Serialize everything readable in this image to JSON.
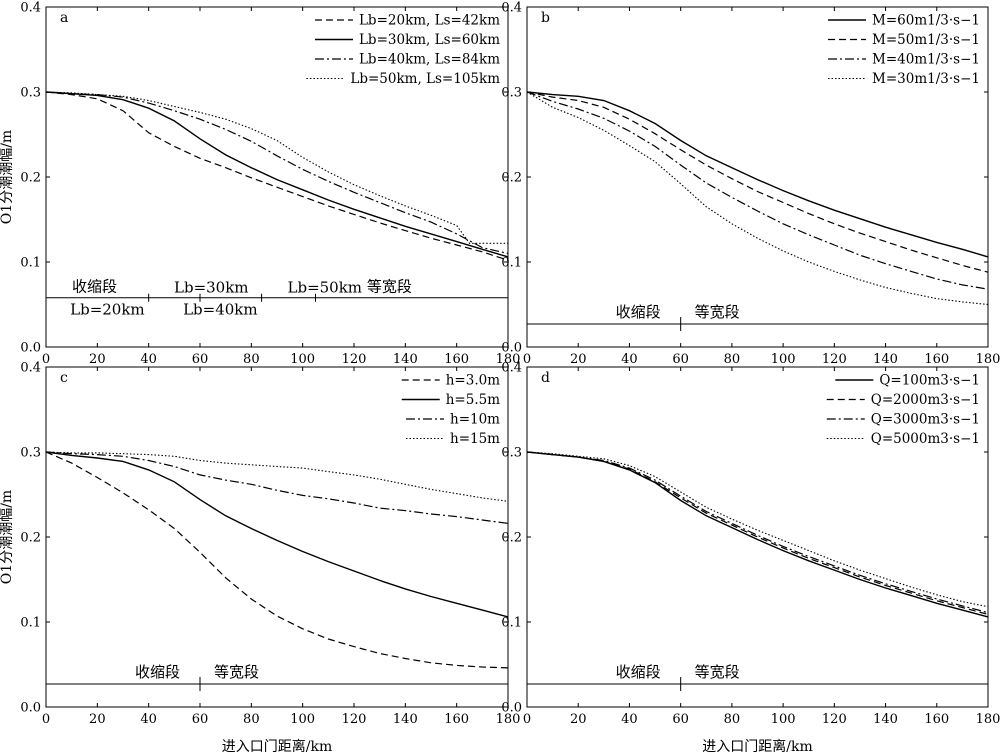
{
  "xlabel": "进入口门距离/km",
  "ylabel": "O1分潮潮幅/m",
  "x_ticks": [
    0,
    20,
    40,
    60,
    80,
    100,
    120,
    140,
    160,
    180
  ],
  "y_ticks": [
    0.0,
    0.1,
    0.2,
    0.3,
    0.4
  ],
  "chart_data": [
    {
      "panel": "a",
      "type": "line",
      "xlabel": "",
      "ylabel": "O1分潮潮幅/m",
      "xlim": [
        0,
        180
      ],
      "ylim": [
        0,
        0.4
      ],
      "legend_position": "top-right",
      "series": [
        {
          "name": "Lb=20km, Ls=42km",
          "style": "dashed",
          "x": [
            0,
            10,
            20,
            30,
            40,
            50,
            60,
            70,
            80,
            90,
            100,
            110,
            120,
            130,
            140,
            150,
            160,
            170,
            180
          ],
          "y": [
            0.3,
            0.297,
            0.292,
            0.278,
            0.252,
            0.236,
            0.222,
            0.211,
            0.199,
            0.188,
            0.177,
            0.166,
            0.156,
            0.146,
            0.137,
            0.128,
            0.12,
            0.112,
            0.102
          ]
        },
        {
          "name": "Lb=30km, Ls=60km",
          "style": "solid",
          "x": [
            0,
            10,
            20,
            30,
            40,
            50,
            60,
            70,
            80,
            90,
            100,
            110,
            120,
            130,
            140,
            150,
            160,
            170,
            180
          ],
          "y": [
            0.3,
            0.298,
            0.296,
            0.291,
            0.281,
            0.266,
            0.245,
            0.226,
            0.211,
            0.197,
            0.185,
            0.173,
            0.162,
            0.152,
            0.142,
            0.133,
            0.124,
            0.115,
            0.106
          ]
        },
        {
          "name": "Lb=40km, Ls=84km",
          "style": "dashdot",
          "x": [
            0,
            10,
            20,
            30,
            40,
            50,
            60,
            70,
            80,
            90,
            100,
            110,
            120,
            130,
            140,
            150,
            160,
            170,
            180
          ],
          "y": [
            0.3,
            0.298,
            0.297,
            0.294,
            0.287,
            0.278,
            0.268,
            0.256,
            0.242,
            0.225,
            0.209,
            0.195,
            0.182,
            0.17,
            0.158,
            0.147,
            0.133,
            0.117,
            0.11
          ]
        },
        {
          "name": "Lb=50km, Ls=105km",
          "style": "dotted",
          "x": [
            0,
            10,
            20,
            30,
            40,
            50,
            60,
            70,
            80,
            90,
            100,
            110,
            120,
            130,
            140,
            150,
            160,
            165,
            170,
            180
          ],
          "y": [
            0.3,
            0.299,
            0.297,
            0.295,
            0.29,
            0.283,
            0.276,
            0.268,
            0.257,
            0.243,
            0.223,
            0.206,
            0.191,
            0.178,
            0.166,
            0.155,
            0.143,
            0.122,
            0.122,
            0.122
          ]
        }
      ],
      "region_labels": {
        "converging": "收缩段",
        "uniform": "等宽段"
      },
      "annotations": [
        {
          "text": "Lb=20km",
          "x": 40
        },
        {
          "text": "Lb=30km",
          "x": 60
        },
        {
          "text": "Lb=40km",
          "x": 84
        },
        {
          "text": "Lb=50km",
          "x": 105
        }
      ]
    },
    {
      "panel": "b",
      "type": "line",
      "xlabel": "",
      "ylabel": "",
      "xlim": [
        0,
        180
      ],
      "ylim": [
        0,
        0.4
      ],
      "legend_position": "top-right",
      "series": [
        {
          "name": "M=60m1/3·s−1",
          "style": "solid",
          "x": [
            0,
            10,
            20,
            30,
            40,
            50,
            60,
            70,
            80,
            90,
            100,
            110,
            120,
            130,
            140,
            150,
            160,
            170,
            180
          ],
          "y": [
            0.3,
            0.297,
            0.295,
            0.29,
            0.278,
            0.263,
            0.243,
            0.225,
            0.211,
            0.197,
            0.184,
            0.172,
            0.161,
            0.151,
            0.141,
            0.132,
            0.123,
            0.115,
            0.106
          ]
        },
        {
          "name": "M=50m1/3·s−1",
          "style": "dashed",
          "x": [
            0,
            10,
            20,
            30,
            40,
            50,
            60,
            70,
            80,
            90,
            100,
            110,
            120,
            130,
            140,
            150,
            160,
            170,
            180
          ],
          "y": [
            0.3,
            0.294,
            0.29,
            0.282,
            0.268,
            0.251,
            0.232,
            0.214,
            0.198,
            0.183,
            0.17,
            0.157,
            0.145,
            0.134,
            0.124,
            0.114,
            0.105,
            0.096,
            0.088
          ]
        },
        {
          "name": "M=40m1/3·s−1",
          "style": "dashdot",
          "x": [
            0,
            10,
            20,
            30,
            40,
            50,
            60,
            70,
            80,
            90,
            100,
            110,
            120,
            130,
            140,
            150,
            160,
            170,
            180
          ],
          "y": [
            0.3,
            0.289,
            0.28,
            0.269,
            0.254,
            0.236,
            0.214,
            0.193,
            0.176,
            0.16,
            0.145,
            0.132,
            0.12,
            0.108,
            0.098,
            0.089,
            0.08,
            0.073,
            0.068
          ]
        },
        {
          "name": "M=30m1/3·s−1",
          "style": "dotted",
          "x": [
            0,
            10,
            20,
            30,
            40,
            50,
            60,
            70,
            80,
            90,
            100,
            110,
            120,
            130,
            140,
            150,
            160,
            170,
            180
          ],
          "y": [
            0.3,
            0.282,
            0.27,
            0.255,
            0.237,
            0.218,
            0.192,
            0.165,
            0.145,
            0.128,
            0.113,
            0.1,
            0.089,
            0.079,
            0.07,
            0.063,
            0.057,
            0.053,
            0.05
          ]
        }
      ],
      "region_labels": {
        "converging": "收缩段",
        "uniform": "等宽段"
      }
    },
    {
      "panel": "c",
      "type": "line",
      "xlabel": "进入口门距离/km",
      "ylabel": "O1分潮潮幅/m",
      "xlim": [
        0,
        180
      ],
      "ylim": [
        0,
        0.4
      ],
      "legend_position": "top-right",
      "series": [
        {
          "name": "h=3.0m",
          "style": "dashed",
          "x": [
            0,
            10,
            20,
            30,
            40,
            50,
            60,
            70,
            80,
            90,
            100,
            110,
            120,
            130,
            140,
            150,
            160,
            170,
            180
          ],
          "y": [
            0.3,
            0.287,
            0.27,
            0.252,
            0.232,
            0.21,
            0.182,
            0.152,
            0.127,
            0.107,
            0.092,
            0.08,
            0.071,
            0.063,
            0.057,
            0.052,
            0.049,
            0.047,
            0.046
          ]
        },
        {
          "name": "h=5.5m",
          "style": "solid",
          "x": [
            0,
            10,
            20,
            30,
            40,
            50,
            60,
            70,
            80,
            90,
            100,
            110,
            120,
            130,
            140,
            150,
            160,
            170,
            180
          ],
          "y": [
            0.3,
            0.296,
            0.293,
            0.289,
            0.279,
            0.265,
            0.244,
            0.225,
            0.21,
            0.196,
            0.183,
            0.171,
            0.16,
            0.149,
            0.139,
            0.13,
            0.122,
            0.114,
            0.106
          ]
        },
        {
          "name": "h=10m",
          "style": "dashdot",
          "x": [
            0,
            10,
            20,
            30,
            40,
            50,
            60,
            70,
            80,
            90,
            100,
            110,
            120,
            130,
            140,
            150,
            160,
            170,
            180
          ],
          "y": [
            0.3,
            0.298,
            0.297,
            0.295,
            0.29,
            0.283,
            0.273,
            0.267,
            0.262,
            0.255,
            0.249,
            0.245,
            0.24,
            0.234,
            0.231,
            0.227,
            0.224,
            0.22,
            0.216
          ]
        },
        {
          "name": "h=15m",
          "style": "dotted",
          "x": [
            0,
            10,
            20,
            30,
            40,
            50,
            60,
            70,
            80,
            90,
            100,
            110,
            120,
            130,
            140,
            150,
            160,
            170,
            180
          ],
          "y": [
            0.3,
            0.299,
            0.299,
            0.298,
            0.297,
            0.295,
            0.29,
            0.287,
            0.285,
            0.283,
            0.281,
            0.277,
            0.273,
            0.268,
            0.262,
            0.256,
            0.251,
            0.246,
            0.242
          ]
        }
      ],
      "region_labels": {
        "converging": "收缩段",
        "uniform": "等宽段"
      }
    },
    {
      "panel": "d",
      "type": "line",
      "xlabel": "进入口门距离/km",
      "ylabel": "",
      "xlim": [
        0,
        180
      ],
      "ylim": [
        0,
        0.4
      ],
      "legend_position": "top-right",
      "series": [
        {
          "name": "Q=100m3·s−1",
          "style": "solid",
          "x": [
            0,
            10,
            20,
            30,
            40,
            50,
            60,
            70,
            80,
            90,
            100,
            110,
            120,
            130,
            140,
            150,
            160,
            170,
            180
          ],
          "y": [
            0.3,
            0.297,
            0.294,
            0.289,
            0.279,
            0.264,
            0.243,
            0.225,
            0.211,
            0.197,
            0.184,
            0.172,
            0.161,
            0.15,
            0.14,
            0.131,
            0.122,
            0.114,
            0.106
          ]
        },
        {
          "name": "Q=2000m3·s−1",
          "style": "dashed",
          "x": [
            0,
            10,
            20,
            30,
            40,
            50,
            60,
            70,
            80,
            90,
            100,
            110,
            120,
            130,
            140,
            150,
            160,
            170,
            180
          ],
          "y": [
            0.3,
            0.297,
            0.294,
            0.289,
            0.28,
            0.265,
            0.246,
            0.228,
            0.214,
            0.2,
            0.187,
            0.175,
            0.164,
            0.153,
            0.143,
            0.134,
            0.125,
            0.117,
            0.109
          ]
        },
        {
          "name": "Q=3000m3·s−1",
          "style": "dashdot",
          "x": [
            0,
            10,
            20,
            30,
            40,
            50,
            60,
            70,
            80,
            90,
            100,
            110,
            120,
            130,
            140,
            150,
            160,
            170,
            180
          ],
          "y": [
            0.3,
            0.297,
            0.294,
            0.29,
            0.281,
            0.267,
            0.248,
            0.23,
            0.216,
            0.202,
            0.189,
            0.177,
            0.166,
            0.155,
            0.145,
            0.136,
            0.127,
            0.119,
            0.111
          ]
        },
        {
          "name": "Q=5000m3·s−1",
          "style": "dotted",
          "x": [
            0,
            10,
            20,
            30,
            40,
            50,
            60,
            70,
            80,
            90,
            100,
            110,
            120,
            130,
            140,
            150,
            160,
            170,
            180
          ],
          "y": [
            0.3,
            0.298,
            0.295,
            0.292,
            0.284,
            0.271,
            0.253,
            0.235,
            0.221,
            0.208,
            0.196,
            0.184,
            0.172,
            0.161,
            0.151,
            0.141,
            0.132,
            0.124,
            0.118
          ]
        }
      ],
      "region_labels": {
        "converging": "收缩段",
        "uniform": "等宽段"
      }
    }
  ]
}
